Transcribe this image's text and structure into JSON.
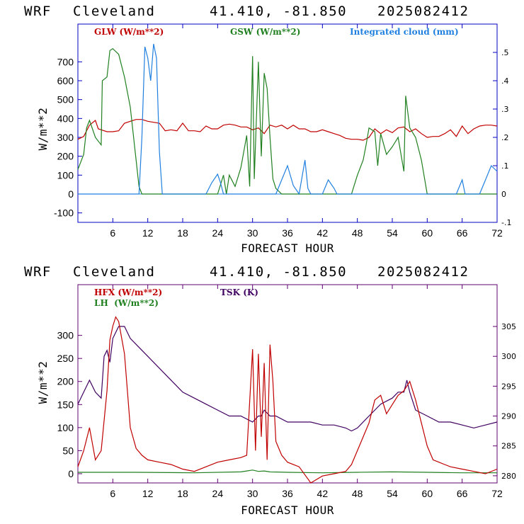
{
  "panels": [
    {
      "header": {
        "model": "WRF",
        "location": "Cleveland",
        "coords": "41.410, -81.850",
        "run": "2025082412"
      },
      "xlabel": "FORECAST HOUR",
      "ylabel": "W/m**2",
      "colors": {
        "frame": "#0000c0",
        "GLW": "#c00000",
        "GSW": "#208020",
        "cloud": "#2080e0"
      }
    },
    {
      "header": {
        "model": "WRF",
        "location": "Cleveland",
        "coords": "41.410, -81.850",
        "run": "2025082412"
      },
      "xlabel": "FORECAST HOUR",
      "ylabel": "W/m**2",
      "colors": {
        "frame": "#600070",
        "HFX": "#c00000",
        "LH": "#208020",
        "TSK": "#400060"
      }
    }
  ],
  "chart_data": [
    {
      "type": "line",
      "title": "WRF Cleveland 41.410, -81.850 2025082412",
      "xlabel": "FORECAST HOUR",
      "ylabel": "W/m**2",
      "xlim": [
        0,
        72
      ],
      "ylim": [
        -150,
        900
      ],
      "y2lim": [
        -0.1,
        0.6
      ],
      "x_ticks": [
        6,
        12,
        18,
        24,
        30,
        36,
        42,
        48,
        54,
        60,
        66,
        72
      ],
      "y_ticks": [
        -100,
        0,
        100,
        200,
        300,
        400,
        500,
        600,
        700
      ],
      "y2_ticks": [
        {
          "v": -0.1,
          "label": "-.1"
        },
        {
          "v": 0,
          "label": "0"
        },
        {
          "v": 0.1,
          "label": ".1"
        },
        {
          "v": 0.2,
          "label": ".2"
        },
        {
          "v": 0.3,
          "label": ".3"
        },
        {
          "v": 0.4,
          "label": ".4"
        },
        {
          "v": 0.5,
          "label": ".5"
        }
      ],
      "series": [
        {
          "name": "GLW (W/m**2)",
          "axis": "left",
          "color": "#c00000",
          "x": [
            0,
            1,
            2,
            3,
            3.5,
            4,
            5,
            6,
            7,
            8,
            9,
            10,
            11,
            12,
            13,
            14,
            15,
            16,
            17,
            18,
            19,
            20,
            21,
            22,
            23,
            24,
            25,
            26,
            27,
            28,
            29,
            30,
            31,
            32,
            33,
            34,
            35,
            36,
            37,
            38,
            39,
            40,
            41,
            42,
            43,
            44,
            45,
            46,
            47,
            48,
            49,
            50,
            51,
            52,
            53,
            54,
            55,
            56,
            57,
            58,
            59,
            60,
            61,
            62,
            63,
            64,
            65,
            66,
            67,
            68,
            69,
            70,
            71,
            72
          ],
          "y": [
            290,
            305,
            365,
            390,
            345,
            340,
            330,
            330,
            335,
            375,
            385,
            395,
            395,
            385,
            380,
            375,
            335,
            340,
            335,
            375,
            335,
            335,
            330,
            360,
            345,
            345,
            365,
            370,
            365,
            355,
            355,
            340,
            350,
            320,
            365,
            355,
            365,
            345,
            365,
            345,
            345,
            330,
            330,
            340,
            330,
            320,
            310,
            295,
            290,
            290,
            285,
            300,
            345,
            320,
            340,
            325,
            350,
            355,
            330,
            345,
            320,
            300,
            305,
            305,
            320,
            340,
            305,
            360,
            320,
            345,
            360,
            365,
            365,
            360
          ]
        },
        {
          "name": "GSW (W/m**2)",
          "axis": "left",
          "color": "#208020",
          "x": [
            0,
            1,
            1.5,
            2,
            3,
            4,
            4.2,
            5,
            5.5,
            6,
            7,
            8,
            9,
            10,
            10.5,
            11,
            12,
            13,
            14,
            22,
            24,
            25,
            25.5,
            26,
            27,
            28,
            29,
            29.5,
            30,
            30.3,
            31,
            31.5,
            32,
            32.5,
            33,
            33.5,
            34,
            35,
            36,
            37,
            38,
            46,
            47,
            48,
            49,
            49.5,
            50,
            51,
            51.5,
            52,
            53,
            54,
            55,
            56,
            56.3,
            57,
            58,
            59,
            60,
            61,
            72
          ],
          "y": [
            130,
            210,
            350,
            390,
            300,
            260,
            600,
            620,
            760,
            770,
            740,
            620,
            460,
            180,
            40,
            0,
            0,
            0,
            0,
            0,
            0,
            100,
            0,
            100,
            40,
            140,
            310,
            40,
            730,
            80,
            700,
            200,
            640,
            560,
            300,
            80,
            30,
            0,
            0,
            0,
            0,
            0,
            0,
            100,
            180,
            260,
            350,
            330,
            150,
            320,
            210,
            250,
            300,
            120,
            520,
            350,
            300,
            180,
            0,
            0,
            0
          ]
        },
        {
          "name": "Integrated cloud (mm)",
          "axis": "right",
          "color": "#2080e0",
          "x": [
            0,
            10.5,
            11,
            11.5,
            12,
            12.5,
            13,
            13.5,
            14,
            14.5,
            22,
            23,
            24,
            24.5,
            25,
            34,
            35,
            36,
            37,
            38,
            39,
            39.5,
            40,
            42,
            43,
            44,
            44.5,
            65,
            66,
            66.5,
            67,
            69,
            70,
            71,
            72
          ],
          "y": [
            0,
            0,
            0.2,
            0.52,
            0.48,
            0.4,
            0.53,
            0.48,
            0.15,
            0,
            0,
            0.04,
            0.07,
            0.04,
            0,
            0,
            0.05,
            0.1,
            0.03,
            0,
            0.12,
            0.02,
            0,
            0,
            0.05,
            0.02,
            0,
            0,
            0.05,
            0,
            0,
            0,
            0.05,
            0.1,
            0.08
          ]
        }
      ]
    },
    {
      "type": "line",
      "title": "WRF Cleveland 41.410, -81.850 2025082412",
      "xlabel": "FORECAST HOUR",
      "ylabel": "W/m**2",
      "xlim": [
        0,
        72
      ],
      "ylim": [
        -20,
        410
      ],
      "y2lim": [
        278.8,
        312
      ],
      "x_ticks": [
        6,
        12,
        18,
        24,
        30,
        36,
        42,
        48,
        54,
        60,
        66,
        72
      ],
      "y_ticks": [
        0,
        50,
        100,
        150,
        200,
        250,
        300
      ],
      "y2_ticks": [
        {
          "v": 280,
          "label": "280"
        },
        {
          "v": 285,
          "label": "285"
        },
        {
          "v": 290,
          "label": "290"
        },
        {
          "v": 295,
          "label": "295"
        },
        {
          "v": 300,
          "label": "300"
        },
        {
          "v": 305,
          "label": "305"
        }
      ],
      "series": [
        {
          "name": "HFX (W/m**2)",
          "axis": "left",
          "color": "#c00000",
          "x": [
            0,
            1,
            2,
            3,
            4,
            5,
            5.5,
            6,
            6.5,
            7,
            8,
            9,
            10,
            11,
            12,
            14,
            16,
            18,
            20,
            22,
            24,
            26,
            28,
            29,
            30,
            30.5,
            31,
            31.5,
            32,
            32.5,
            33,
            33.5,
            34,
            35,
            36,
            38,
            40,
            42,
            44,
            46,
            47,
            48,
            49,
            50,
            51,
            52,
            53,
            54,
            55,
            56,
            57,
            58,
            59,
            60,
            61,
            62,
            63,
            64,
            66,
            68,
            70,
            72
          ],
          "y": [
            15,
            50,
            100,
            30,
            50,
            180,
            290,
            320,
            340,
            330,
            260,
            100,
            55,
            40,
            30,
            25,
            20,
            10,
            5,
            15,
            25,
            30,
            35,
            40,
            270,
            50,
            260,
            80,
            240,
            30,
            280,
            200,
            70,
            40,
            25,
            15,
            -25,
            -5,
            0,
            5,
            20,
            50,
            80,
            110,
            160,
            170,
            130,
            150,
            170,
            180,
            200,
            160,
            110,
            60,
            30,
            25,
            20,
            15,
            10,
            5,
            0,
            10
          ]
        },
        {
          "name": "LH (W/m**2)",
          "axis": "left",
          "color": "#208020",
          "x": [
            0,
            10,
            20,
            28,
            29,
            30,
            31,
            32,
            33,
            36,
            42,
            48,
            54,
            60,
            66,
            72
          ],
          "y": [
            3,
            3,
            2,
            4,
            6,
            8,
            5,
            6,
            4,
            3,
            2,
            3,
            4,
            3,
            2,
            2
          ]
        },
        {
          "name": "TSK (K)",
          "axis": "right",
          "color": "#400060",
          "x": [
            0,
            1,
            2,
            3,
            4,
            4.5,
            5,
            5.5,
            6,
            6.5,
            7,
            8,
            8.5,
            9,
            10,
            12,
            14,
            16,
            18,
            20,
            22,
            24,
            26,
            28,
            30,
            30.5,
            31,
            31.5,
            32,
            33,
            34,
            36,
            38,
            40,
            42,
            44,
            46,
            47,
            48,
            50,
            52,
            54,
            55,
            56,
            56.5,
            57,
            58,
            60,
            62,
            64,
            66,
            68,
            70,
            72
          ],
          "y": [
            292,
            294,
            296,
            294,
            293,
            300,
            301,
            299,
            303,
            304,
            305,
            305,
            304,
            303,
            302,
            300,
            298,
            296,
            294,
            293,
            292,
            291,
            290,
            290,
            289,
            289.5,
            290,
            290,
            291,
            290,
            290,
            289,
            289,
            289,
            288.5,
            288.5,
            288,
            287.5,
            288,
            290,
            292,
            293,
            294,
            294,
            296,
            294,
            291,
            290,
            289,
            289,
            288.5,
            288,
            288.5,
            289
          ]
        }
      ],
      "legend_colors": {
        "HFX": "#c00000",
        "LH": "#208020",
        "TSK": "#400060"
      }
    }
  ],
  "legends": {
    "p1": {
      "glw": "GLW (W/m**2)",
      "gsw": "GSW (W/m**2)",
      "cloud": "Integrated cloud (mm)"
    },
    "p2": {
      "hfx": "HFX (W/m**2)",
      "lh": "LH  (W/m**2)",
      "tsk": "TSK (K)"
    }
  }
}
